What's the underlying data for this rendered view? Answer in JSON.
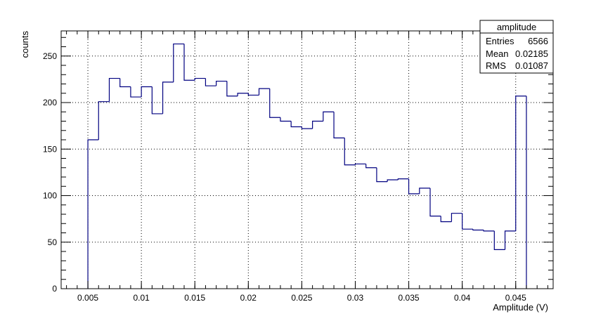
{
  "chart_data": {
    "type": "histogram",
    "title": "",
    "xlabel": "Amplitude (V)",
    "ylabel": "counts",
    "xlim": [
      0.0025,
      0.0485
    ],
    "ylim": [
      0,
      277
    ],
    "x_ticks": [
      0.005,
      0.01,
      0.015,
      0.02,
      0.025,
      0.03,
      0.035,
      0.04,
      0.045
    ],
    "x_tick_labels": [
      "0.005",
      "0.01",
      "0.015",
      "0.02",
      "0.025",
      "0.03",
      "0.035",
      "0.04",
      "0.045"
    ],
    "y_ticks": [
      0,
      50,
      100,
      150,
      200,
      250
    ],
    "y_tick_labels": [
      "0",
      "50",
      "100",
      "150",
      "200",
      "250"
    ],
    "grid": true,
    "line_color": "#000080",
    "bin_edges": [
      0.005,
      0.006,
      0.007,
      0.008,
      0.009,
      0.01,
      0.011,
      0.012,
      0.013,
      0.014,
      0.015,
      0.016,
      0.017,
      0.018,
      0.019,
      0.02,
      0.021,
      0.022,
      0.023,
      0.024,
      0.025,
      0.026,
      0.027,
      0.028,
      0.029,
      0.03,
      0.031,
      0.032,
      0.033,
      0.034,
      0.035,
      0.036,
      0.037,
      0.038,
      0.039,
      0.04,
      0.041,
      0.042,
      0.043,
      0.044,
      0.045,
      0.046
    ],
    "counts": [
      160,
      201,
      226,
      217,
      206,
      217,
      188,
      222,
      263,
      224,
      226,
      218,
      223,
      207,
      210,
      208,
      215,
      184,
      180,
      174,
      172,
      180,
      190,
      162,
      133,
      134,
      130,
      115,
      117,
      118,
      102,
      108,
      78,
      72,
      81,
      64,
      63,
      62,
      42,
      62,
      207
    ],
    "stats_box": {
      "name": "amplitude",
      "rows": [
        {
          "label": "Entries",
          "value": "6566"
        },
        {
          "label": "Mean",
          "value": "0.02185"
        },
        {
          "label": "RMS",
          "value": "0.01087"
        }
      ]
    }
  }
}
